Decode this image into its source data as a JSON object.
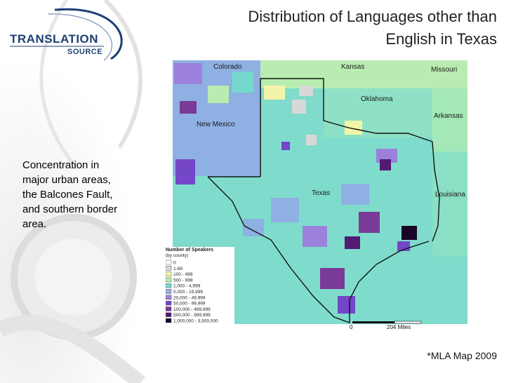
{
  "slide": {
    "title_line1": "Distribution of Languages other than",
    "title_line2": "English in Texas",
    "side_text": "Concentration in major urban areas, the Balcones Fault, and southern border area.",
    "credit": "*MLA Map 2009"
  },
  "logo": {
    "line1": "TRANSLATION",
    "line2": "SOURCE"
  },
  "map": {
    "labels": {
      "colorado": "Colorado",
      "kansas": "Kansas",
      "missouri": "Missouri",
      "oklahoma": "Oklahoma",
      "arkansas": "Arkansas",
      "new_mexico": "New Mexico",
      "texas": "Texas",
      "louisiana": "Louisiana"
    },
    "legend": {
      "title": "Number of Speakers",
      "subtitle": "(by county)",
      "items": [
        {
          "label": "0",
          "color": "#ffffff"
        },
        {
          "label": "1-99",
          "color": "#d8d8d8"
        },
        {
          "label": "100 - 499",
          "color": "#f2f5a8"
        },
        {
          "label": "500 - 999",
          "color": "#b9ecb0"
        },
        {
          "label": "1,000 - 4,999",
          "color": "#74d9cc"
        },
        {
          "label": "5,000 - 19,999",
          "color": "#8fb0e2"
        },
        {
          "label": "20,000 - 49,999",
          "color": "#9b81dc"
        },
        {
          "label": "50,000 - 99,999",
          "color": "#7447c8"
        },
        {
          "label": "100,000 - 499,999",
          "color": "#7a3a98"
        },
        {
          "label": "500,000 - 999,999",
          "color": "#531a72"
        },
        {
          "label": "1,000,000 - 3,500,000",
          "color": "#1a0528"
        }
      ]
    },
    "scale": {
      "start": "0",
      "end": "204 Miles"
    }
  }
}
